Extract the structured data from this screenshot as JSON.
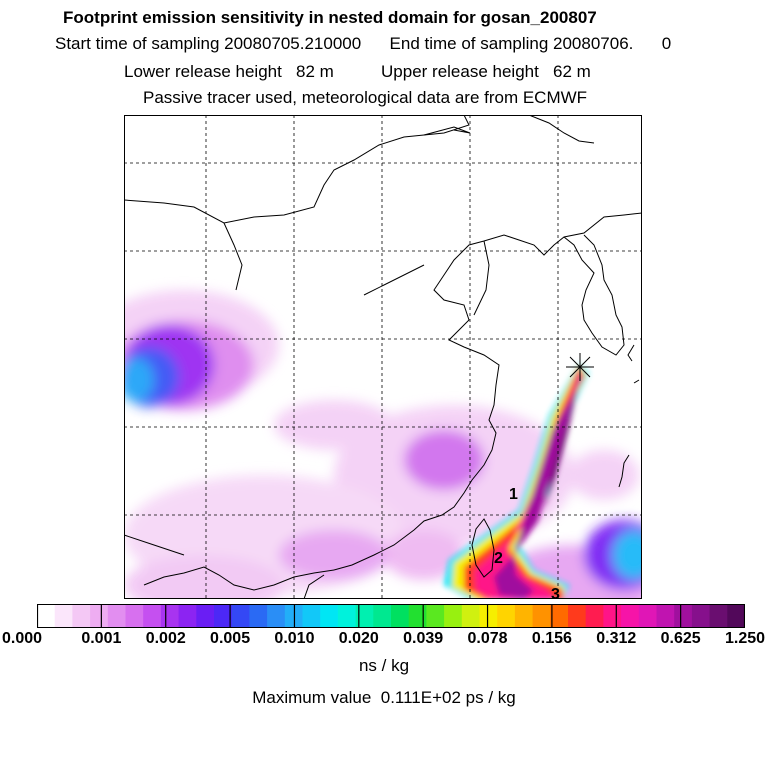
{
  "header": {
    "title": "Footprint emission sensitivity in nested domain for gosan_200807",
    "sampling": "Start time of sampling 20080705.210000      End time of sampling 20080706.      0",
    "release": "Lower release height   82 m          Upper release height   62 m",
    "info": "Passive tracer used, meteorological data are from ECMWF"
  },
  "map": {
    "markers": [
      "1",
      "2",
      "3"
    ],
    "station_symbol": "star-marker"
  },
  "colorbar": {
    "ticks": [
      "0.000",
      "0.001",
      "0.002",
      "0.005",
      "0.010",
      "0.020",
      "0.039",
      "0.078",
      "0.156",
      "0.312",
      "0.625",
      "1.250"
    ],
    "unit": "ns / kg",
    "colors": [
      "#ffffff",
      "#fbe6fb",
      "#f4c8f5",
      "#eeadf2",
      "#e28ef0",
      "#d770ef",
      "#c550f0",
      "#a834f0",
      "#8c24f2",
      "#6a1ef4",
      "#4c28f6",
      "#3448f5",
      "#2a6af4",
      "#2a8ef6",
      "#22aef8",
      "#12c8f8",
      "#00e6f4",
      "#00f2dc",
      "#00f0b0",
      "#00e890",
      "#00e060",
      "#22e030",
      "#5ae820",
      "#98f010",
      "#d0f010",
      "#f6ee00",
      "#ffd400",
      "#ffb400",
      "#ff9200",
      "#ff6a00",
      "#ff3a1c",
      "#ff1c50",
      "#ff1488",
      "#f614a8",
      "#e016b6",
      "#c014b0",
      "#a0109e",
      "#86108c",
      "#6a0e70",
      "#52085a"
    ]
  },
  "footer": {
    "maximum": "Maximum value  0.111E+02 ps / kg"
  }
}
